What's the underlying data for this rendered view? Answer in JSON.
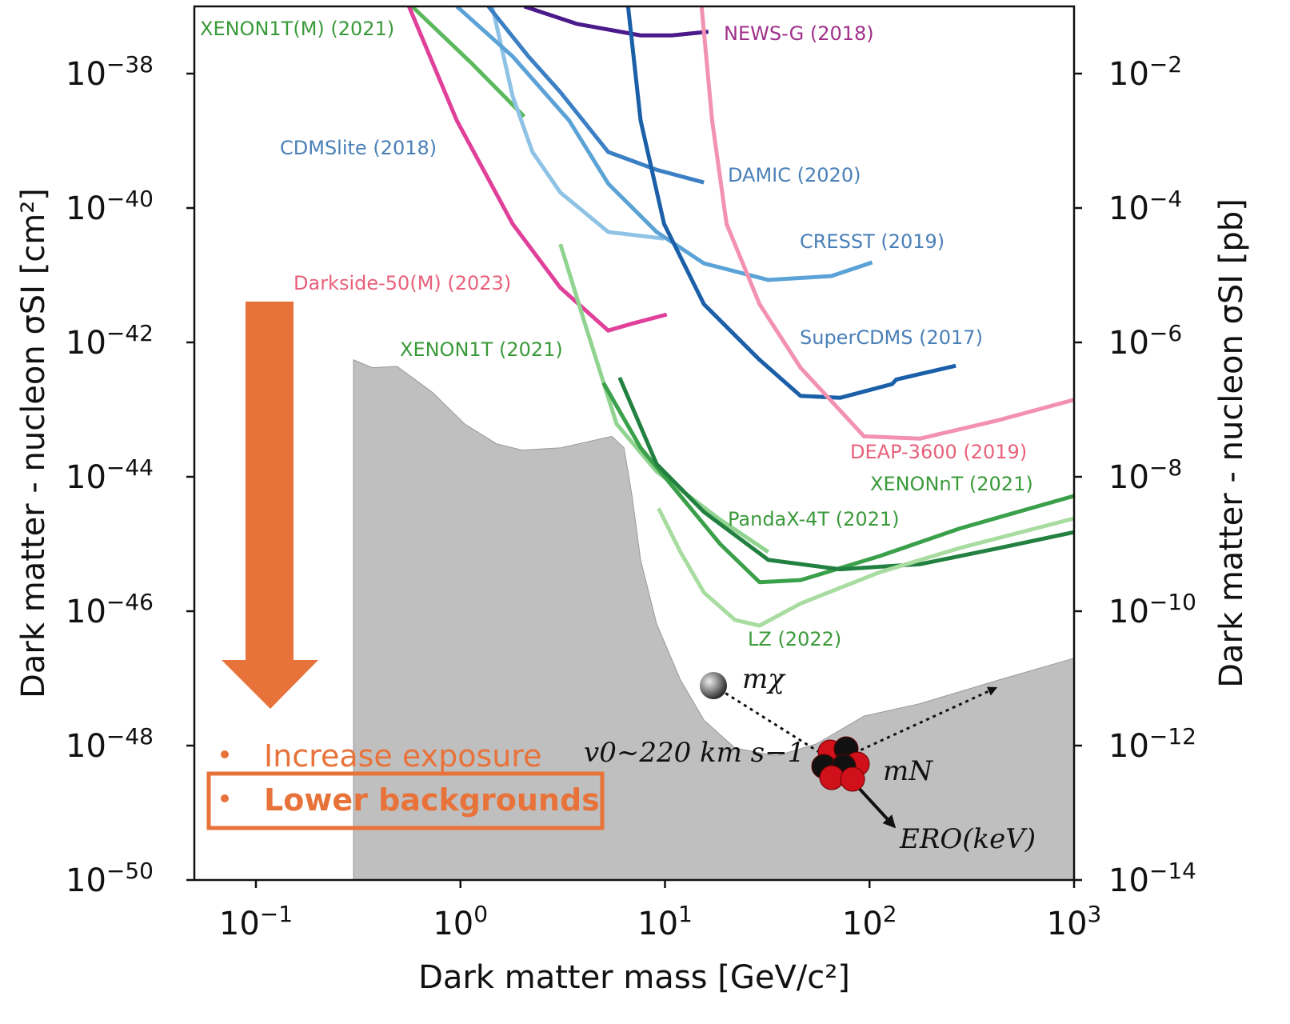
{
  "chart_data": {
    "type": "line",
    "x_label": "Dark matter mass [GeV/c²]",
    "y_label": "Dark matter - nucleon σSI [cm²]",
    "y2_label": "Dark matter - nucleon σSI [pb]",
    "log_x": true,
    "log_y": true,
    "xlim": [
      0.05,
      1000
    ],
    "ylim": [
      1e-50,
      1e-37
    ],
    "y2lim": [
      1e-14,
      0.1
    ],
    "xticks": [
      {
        "value": 0.1,
        "label": "10−1"
      },
      {
        "value": 1,
        "label": "100"
      },
      {
        "value": 10,
        "label": "101"
      },
      {
        "value": 100,
        "label": "102"
      },
      {
        "value": 1000,
        "label": "103"
      }
    ],
    "yticks": [
      {
        "value": 1e-50,
        "label": "10−50"
      },
      {
        "value": 1e-48,
        "label": "10−48"
      },
      {
        "value": 1e-46,
        "label": "10−46"
      },
      {
        "value": 1e-44,
        "label": "10−44"
      },
      {
        "value": 1e-42,
        "label": "10−42"
      },
      {
        "value": 1e-40,
        "label": "10−40"
      },
      {
        "value": 1e-38,
        "label": "10−38"
      }
    ],
    "y2ticks": [
      {
        "value": 1e-14,
        "label": "10−14"
      },
      {
        "value": 1e-12,
        "label": "10−12"
      },
      {
        "value": 1e-10,
        "label": "10−10"
      },
      {
        "value": 1e-08,
        "label": "10−8"
      },
      {
        "value": 1e-06,
        "label": "10−6"
      },
      {
        "value": 0.0001,
        "label": "10−4"
      },
      {
        "value": 0.01,
        "label": "10−2"
      }
    ],
    "area": {
      "color": "#bfbfbf",
      "x": [
        0.3,
        0.37,
        0.49,
        0.73,
        1.05,
        1.5,
        2.0,
        3.1,
        5.5,
        6.3,
        6.9,
        7.6,
        9.1,
        11.9,
        15.5,
        22,
        35,
        55,
        94,
        176,
        430,
        1000
      ],
      "values": [
        5.5e-43,
        4.2e-43,
        4.4e-43,
        1.8e-43,
        6.1e-44,
        3.1e-44,
        2.5e-44,
        2.7e-44,
        4e-44,
        2.7e-44,
        5.2e-45,
        5.8e-46,
        6.5e-47,
        9.5e-48,
        2.4e-48,
        9.2e-49,
        7e-49,
        1.06e-48,
        2.75e-48,
        4.2e-48,
        9.5e-48,
        2e-47
      ]
    },
    "series": [
      {
        "name": "XENON1T(M) (2021)",
        "color": "#5cb85c",
        "label_color": "#3a9a3a",
        "x": [
          0.58,
          1.14,
          2.05
        ],
        "values": [
          1e-37,
          1.4e-38,
          2.3e-39
        ]
      },
      {
        "name": "Darkside-50(M) (2023)",
        "color": "#e0409a",
        "label_color": "#e8607a",
        "x": [
          0.56,
          0.96,
          1.8,
          3.08,
          5.28,
          6.9,
          10.2
        ],
        "values": [
          1e-37,
          2e-39,
          5.8e-41,
          6.5e-42,
          1.5e-42,
          1.9e-42,
          2.6e-42
        ]
      },
      {
        "name": "NEWS-G (2018)",
        "color": "#4b1a8a",
        "label_color": "#a0308a",
        "x": [
          2.05,
          3.7,
          7.6,
          10.8,
          16.3
        ],
        "values": [
          1e-37,
          5.5e-38,
          3.7e-38,
          3.7e-38,
          4.2e-38
        ]
      },
      {
        "name": "CDMSlite (2018)",
        "color": "#8fc3e6",
        "label_color": "#4a80b8",
        "x": [
          1.43,
          1.8,
          2.25,
          3.08,
          5.28,
          9.9
        ],
        "values": [
          1e-37,
          4.6e-39,
          6.8e-40,
          1.7e-40,
          4.4e-41,
          3.5e-41
        ]
      },
      {
        "name": "DAMIC (2020)",
        "color": "#3b7fc4",
        "label_color": "#4a80b8",
        "x": [
          1.37,
          2.15,
          3.08,
          5.28,
          9.1,
          15.5
        ],
        "values": [
          1e-37,
          1.8e-38,
          5.3e-39,
          6.8e-40,
          3.7e-40,
          2.4e-40
        ]
      },
      {
        "name": "CRESST (2019)",
        "color": "#5ba3d6",
        "label_color": "#4a80b8",
        "x": [
          0.96,
          1.8,
          3.4,
          5.28,
          9.1,
          15.5,
          32,
          65,
          103
        ],
        "values": [
          1e-37,
          1.8e-38,
          2e-39,
          2.3e-40,
          4.4e-41,
          1.5e-41,
          8.5e-42,
          9.7e-42,
          1.55e-41
        ]
      },
      {
        "name": "SuperCDMS (2017)",
        "color": "#1a5fa8",
        "label_color": "#4a80b8",
        "x": [
          6.6,
          7.6,
          9.9,
          15.5,
          29,
          46,
          72,
          129,
          135,
          264
        ],
        "values": [
          1e-37,
          2e-39,
          5.8e-41,
          3.7e-42,
          5.5e-43,
          1.6e-43,
          1.5e-43,
          2.4e-43,
          2.8e-43,
          4.5e-43
        ]
      },
      {
        "name": "DEAP-3600 (2019)",
        "color": "#f291b0",
        "label_color": "#e8607a",
        "x": [
          15.1,
          17,
          20,
          29,
          46,
          94,
          176,
          430,
          1000
        ],
        "values": [
          1e-37,
          2e-39,
          5.8e-41,
          3.7e-42,
          4.2e-43,
          4e-44,
          3.7e-44,
          7e-44,
          1.4e-43
        ]
      },
      {
        "name": "XENON1T (2021)",
        "color": "#90d490",
        "label_color": "#3a9a3a",
        "x": [
          3.08,
          4.0,
          5.8,
          9.1,
          18.6,
          32
        ],
        "values": [
          2.9e-41,
          2.2e-42,
          6.1e-44,
          1.2e-44,
          2.3e-45,
          7.6e-46
        ]
      },
      {
        "name": "XENONnT (2021)",
        "color": "#3aa04a",
        "label_color": "#3a9a3a",
        "x": [
          5.0,
          7.6,
          11.9,
          18.6,
          29,
          46,
          112,
          276,
          1000
        ],
        "values": [
          2.5e-43,
          2.7e-44,
          5.2e-45,
          1e-45,
          2.7e-46,
          2.9e-46,
          6.6e-46,
          1.7e-45,
          5.2e-45
        ]
      },
      {
        "name": "PandaX-4T (2021)",
        "color": "#228040",
        "label_color": "#3a9a3a",
        "x": [
          6.0,
          9.1,
          15.5,
          32,
          72,
          176,
          430,
          1000
        ],
        "values": [
          3e-43,
          1.55e-44,
          3e-45,
          5.8e-46,
          4.2e-46,
          5e-46,
          8.7e-46,
          1.5e-45
        ]
      },
      {
        "name": "LZ (2022)",
        "color": "#a8dca0",
        "label_color": "#3a9a3a",
        "x": [
          9.3,
          11.9,
          15.5,
          22,
          29,
          46,
          112,
          276,
          1000
        ],
        "values": [
          3.4e-45,
          7.6e-46,
          1.9e-46,
          7.4e-47,
          6.1e-47,
          1.3e-46,
          3.8e-46,
          8.7e-46,
          2.4e-45
        ]
      }
    ],
    "bullets": [
      "Increase exposure",
      "Lower backgrounds"
    ],
    "diagram_labels": [
      "mχ",
      "v0~220 km s−1",
      "mN",
      "ERO(keV)"
    ]
  }
}
